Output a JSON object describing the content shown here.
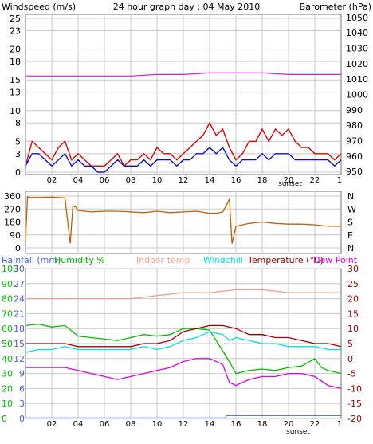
{
  "header": {
    "title": "24 hour graph day : 04 May 2010",
    "left_label": "Windspeed (m/s)",
    "right_label": "Barometer (hPa)"
  },
  "colors": {
    "gust": "#e00000",
    "avg_wind": "#1010c0",
    "barometer": "#d020d0",
    "wind_dir": "#c06000",
    "outdoor_humidity": "#00c000",
    "rainfall": "#5060e0",
    "indoor_temp": "#f0a090",
    "windchill": "#00e0e0",
    "temperature": "#a00000",
    "dew_point": "#e000e0",
    "grid": "#c8c8c8",
    "frame": "#707070"
  },
  "chart_data": [
    {
      "type": "line",
      "id": "wind_baro",
      "x_ticks": [
        "02",
        "04",
        "06",
        "08",
        "10",
        "12",
        "14",
        "16",
        "18",
        "20",
        "22"
      ],
      "x_end_marker": "1",
      "sunset_label": "sunset",
      "y_left_ticks": [
        0,
        3,
        5,
        8,
        10,
        13,
        15,
        18,
        20,
        23,
        25
      ],
      "y_right_ticks": [
        950,
        960,
        970,
        980,
        990,
        1000,
        1010,
        1020,
        1030,
        1040,
        1050
      ],
      "ylim_left": [
        0,
        25
      ],
      "ylim_right": [
        948,
        1052
      ],
      "series": [
        {
          "key": "gust",
          "x": [
            0,
            0.5,
            1,
            1.5,
            2,
            2.5,
            3,
            3.5,
            4,
            4.5,
            5,
            5.5,
            6,
            6.5,
            7,
            7.5,
            8,
            8.5,
            9,
            9.5,
            10,
            10.5,
            11,
            11.5,
            12,
            12.5,
            13,
            13.5,
            14,
            14.5,
            15,
            15.5,
            16,
            16.5,
            17,
            17.5,
            18,
            18.5,
            19,
            19.5,
            20,
            20.5,
            21,
            21.5,
            22,
            22.5,
            23,
            23.5,
            24
          ],
          "values": [
            1,
            5,
            4,
            3,
            2,
            4,
            5,
            2,
            3,
            2,
            1,
            1,
            1,
            2,
            3,
            1,
            2,
            2,
            3,
            2,
            4,
            3,
            3,
            2,
            3,
            4,
            5,
            6,
            8,
            6,
            7,
            4,
            2,
            3,
            5,
            5,
            7,
            5,
            7,
            6,
            7,
            5,
            4,
            4,
            3,
            3,
            3,
            2,
            3
          ]
        },
        {
          "key": "avg_wind",
          "x": [
            0,
            0.5,
            1,
            1.5,
            2,
            2.5,
            3,
            3.5,
            4,
            4.5,
            5,
            5.5,
            6,
            6.5,
            7,
            7.5,
            8,
            8.5,
            9,
            9.5,
            10,
            10.5,
            11,
            11.5,
            12,
            12.5,
            13,
            13.5,
            14,
            14.5,
            15,
            15.5,
            16,
            16.5,
            17,
            17.5,
            18,
            18.5,
            19,
            19.5,
            20,
            20.5,
            21,
            21.5,
            22,
            22.5,
            23,
            23.5,
            24
          ],
          "values": [
            1,
            3,
            3,
            2,
            1,
            2,
            3,
            1,
            2,
            1,
            1,
            0,
            0,
            1,
            2,
            1,
            1,
            1,
            2,
            1,
            2,
            2,
            2,
            1,
            2,
            2,
            3,
            3,
            4,
            3,
            4,
            2,
            1,
            2,
            2,
            2,
            3,
            2,
            3,
            3,
            3,
            2,
            2,
            2,
            2,
            2,
            2,
            1,
            2
          ]
        },
        {
          "key": "barometer",
          "x": [
            0,
            2,
            4,
            6,
            8,
            10,
            12,
            14,
            15,
            16,
            18,
            20,
            22,
            24
          ],
          "values": [
            1012,
            1012,
            1012,
            1012,
            1012,
            1013,
            1013,
            1014,
            1014,
            1014,
            1014,
            1013,
            1013,
            1013
          ]
        }
      ]
    },
    {
      "type": "line",
      "id": "wind_direction",
      "y_left_ticks": [
        0,
        90,
        180,
        270,
        360
      ],
      "y_right_labels": [
        "N",
        "W",
        "S",
        "E",
        "N"
      ],
      "ylim": [
        0,
        360
      ],
      "series": [
        {
          "key": "wind_dir",
          "x": [
            0,
            0.15,
            0.3,
            1,
            2,
            3,
            3.4,
            3.6,
            3.8,
            4,
            5,
            6,
            7,
            8,
            9,
            10,
            11,
            12,
            13,
            14,
            14.5,
            15,
            15.3,
            15.5,
            15.7,
            16,
            17,
            18,
            19,
            20,
            21,
            22,
            23,
            24
          ],
          "values": [
            40,
            355,
            350,
            350,
            352,
            348,
            30,
            290,
            285,
            260,
            250,
            255,
            255,
            250,
            245,
            255,
            245,
            250,
            255,
            240,
            240,
            250,
            300,
            340,
            30,
            150,
            170,
            180,
            170,
            165,
            165,
            160,
            150,
            150
          ]
        }
      ]
    },
    {
      "type": "line",
      "id": "temperature_humidity",
      "x_ticks": [
        "02",
        "04",
        "06",
        "08",
        "10",
        "12",
        "14",
        "16",
        "18",
        "20",
        "22"
      ],
      "x_end_marker": "1",
      "sunset_label": "sunset",
      "labels": {
        "rainfall": "Rainfall (mm)",
        "humidity": "Humidity %",
        "indoor": "Indoor temp",
        "windchill": "Windchill",
        "temperature": "Temperature (°C)",
        "dewpoint": "Dew Point"
      },
      "y_humidity_ticks": [
        0,
        10,
        20,
        30,
        40,
        50,
        60,
        70,
        80,
        90,
        100
      ],
      "y_rain_ticks": [
        0,
        3,
        6,
        9,
        12,
        15,
        18,
        21,
        24,
        27,
        30
      ],
      "y_temp_ticks": [
        -20,
        -15,
        -10,
        -5,
        0,
        5,
        10,
        15,
        20,
        25,
        30
      ],
      "ylim_temp": [
        -20,
        30
      ],
      "ylim_humidity": [
        0,
        100
      ],
      "ylim_rain": [
        0,
        30
      ],
      "series": [
        {
          "key": "indoor_temp",
          "x": [
            0,
            2,
            4,
            6,
            8,
            10,
            12,
            14,
            16,
            18,
            20,
            22,
            24
          ],
          "values": [
            20,
            20,
            20,
            20,
            20,
            21,
            22,
            22,
            23,
            23,
            22,
            22,
            22
          ]
        },
        {
          "key": "outdoor_humidity",
          "x": [
            0,
            1,
            2,
            3,
            4,
            5,
            6,
            7,
            8,
            9,
            10,
            11,
            12,
            13,
            14,
            15,
            15.5,
            16,
            17,
            18,
            19,
            20,
            21,
            22,
            22.5,
            23,
            24
          ],
          "values": [
            62,
            63,
            61,
            62,
            55,
            54,
            53,
            52,
            54,
            56,
            55,
            56,
            60,
            60,
            59,
            45,
            38,
            30,
            32,
            33,
            32,
            34,
            35,
            40,
            34,
            32,
            30
          ]
        },
        {
          "key": "windchill",
          "x": [
            0,
            1,
            2,
            3,
            4,
            5,
            6,
            7,
            8,
            9,
            10,
            11,
            12,
            13,
            14,
            15,
            15.5,
            16,
            17,
            18,
            19,
            20,
            21,
            22,
            23,
            24
          ],
          "values": [
            2,
            3,
            3,
            4,
            3,
            3,
            3,
            3,
            3,
            4,
            3,
            4,
            6,
            7,
            9,
            8,
            6,
            7,
            6,
            5,
            5,
            4,
            4,
            4,
            3,
            3
          ]
        },
        {
          "key": "temperature",
          "x": [
            0,
            1,
            2,
            3,
            4,
            5,
            6,
            7,
            8,
            9,
            10,
            11,
            12,
            13,
            14,
            15,
            16,
            17,
            18,
            19,
            20,
            21,
            22,
            23,
            24
          ],
          "values": [
            5,
            5,
            5,
            5,
            4,
            4,
            4,
            4,
            4,
            5,
            5,
            6,
            9,
            10,
            11,
            11,
            10,
            8,
            8,
            7,
            7,
            6,
            5,
            5,
            4
          ]
        },
        {
          "key": "dew_point",
          "x": [
            0,
            1,
            2,
            3,
            4,
            5,
            6,
            7,
            8,
            9,
            10,
            11,
            12,
            13,
            14,
            15,
            15.5,
            16,
            17,
            18,
            19,
            20,
            21,
            22,
            23,
            24
          ],
          "values": [
            -3,
            -3,
            -3,
            -3,
            -4,
            -5,
            -6,
            -7,
            -6,
            -5,
            -4,
            -3,
            -1,
            0,
            0,
            -2,
            -8,
            -9,
            -7,
            -6,
            -6,
            -5,
            -5,
            -6,
            -9,
            -10
          ]
        },
        {
          "key": "rainfall",
          "x": [
            0,
            15.2,
            15.3,
            24
          ],
          "values": [
            0.1,
            0.1,
            0.6,
            0.6
          ]
        }
      ]
    }
  ]
}
